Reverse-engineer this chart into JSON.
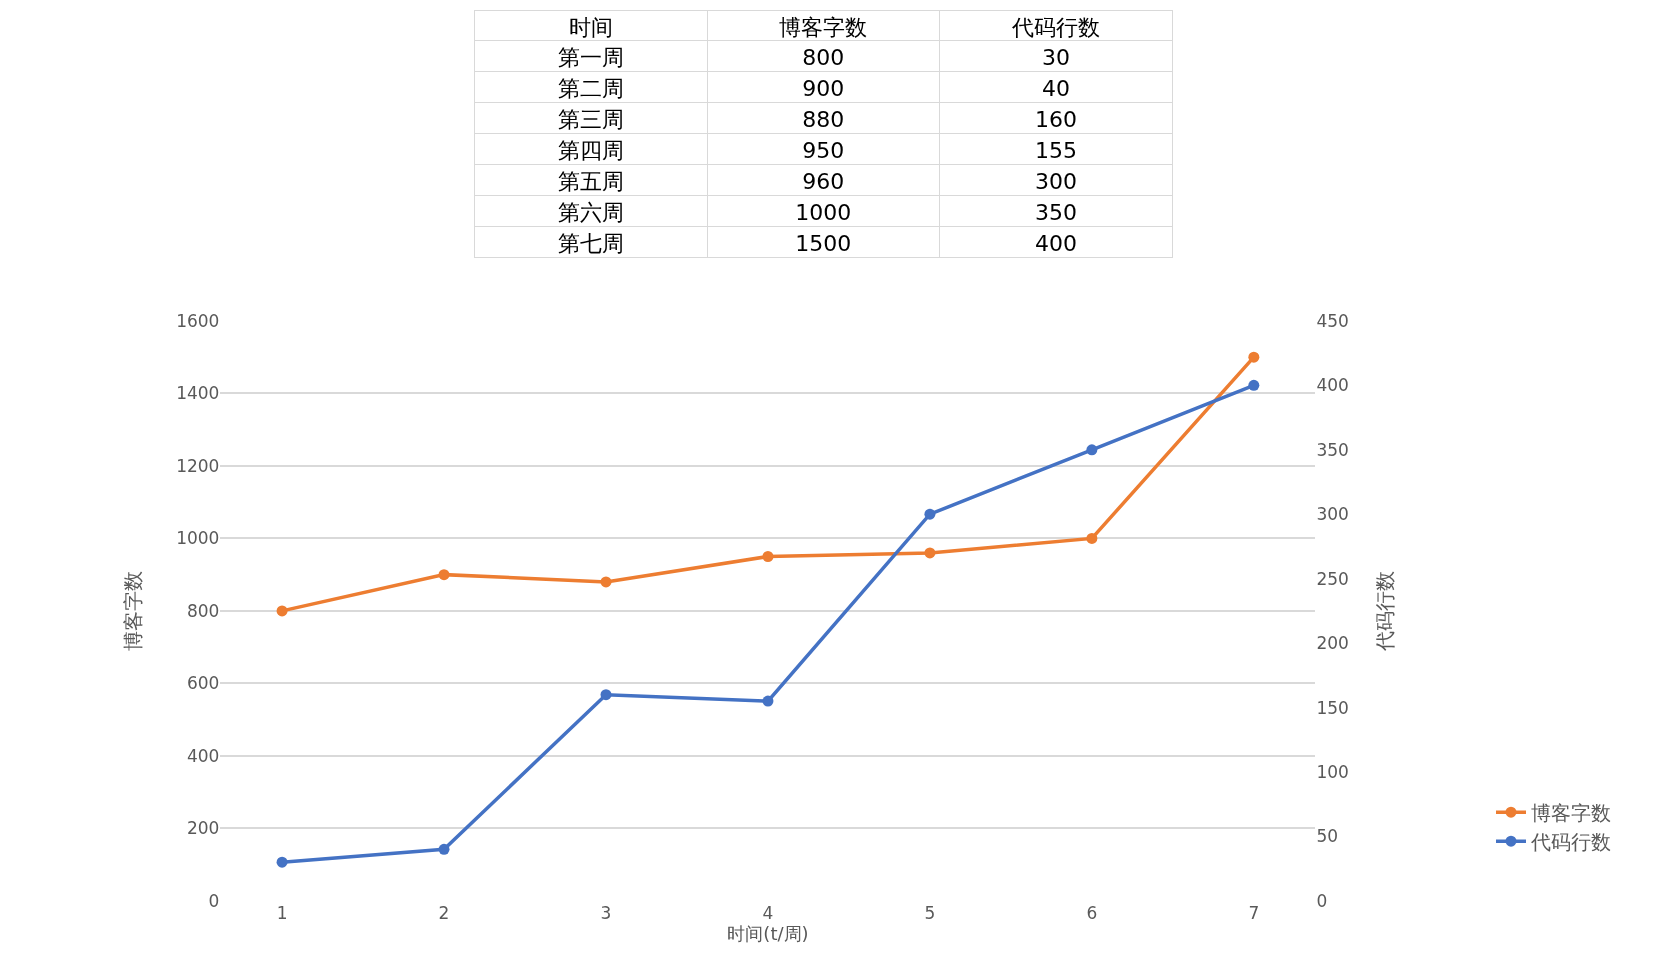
{
  "chart_data": [
    {
      "type": "other",
      "xlabel": "时间",
      "categories": [
        "第一周",
        "第二周",
        "第三周",
        "第四周",
        "第五周",
        "第六周",
        "第七周"
      ],
      "data_labels": true,
      "series": [
        {
          "name": "博客字数",
          "values": [
            800,
            900,
            880,
            950,
            960,
            1000,
            1500
          ]
        },
        {
          "name": "代码行数",
          "values": [
            30,
            40,
            160,
            155,
            300,
            350,
            400
          ]
        }
      ]
    },
    {
      "type": "line",
      "xlabel": "时间(t/周)",
      "ylabel": "博客字数",
      "y2label": "代码行数",
      "categories": [
        "1",
        "2",
        "3",
        "4",
        "5",
        "6",
        "7"
      ],
      "ylim": [
        0,
        1600
      ],
      "yticks": [
        0,
        200,
        400,
        600,
        800,
        1000,
        1200,
        1400,
        1600
      ],
      "y2lim": [
        0,
        450
      ],
      "y2ticks": [
        0,
        50,
        100,
        150,
        200,
        250,
        300,
        350,
        400,
        450
      ],
      "grid": "y",
      "legend": "right",
      "marker": "circle",
      "line_style": "solid",
      "series": [
        {
          "name": "博客字数",
          "color": "#ed7d31",
          "values": [
            800,
            900,
            880,
            950,
            960,
            1000,
            1500
          ]
        },
        {
          "name": "代码行数",
          "color": "#4472c4",
          "axis": "y2",
          "values": [
            30,
            40,
            160,
            155,
            300,
            350,
            400
          ]
        }
      ]
    }
  ]
}
